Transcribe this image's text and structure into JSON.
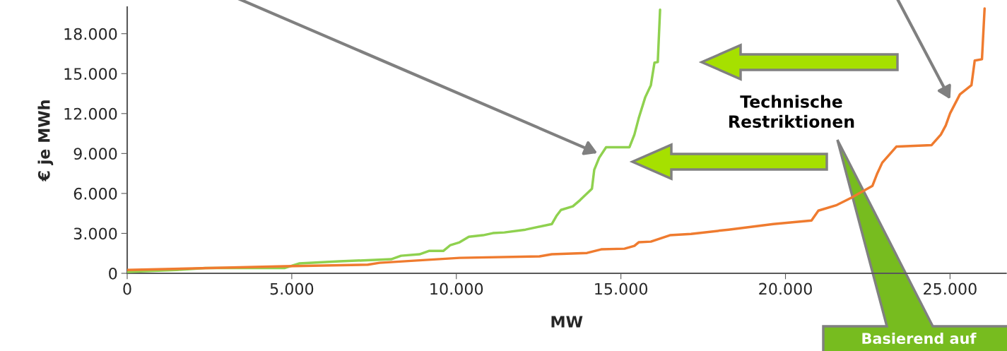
{
  "chart_data": {
    "type": "line",
    "xlabel": "MW",
    "ylabel": "€ je MWh",
    "xlim": [
      0,
      26700
    ],
    "ylim": [
      0,
      20000
    ],
    "xticks": [
      {
        "value": 0,
        "label": "0"
      },
      {
        "value": 5000,
        "label": "5.000"
      },
      {
        "value": 10000,
        "label": "10.000"
      },
      {
        "value": 15000,
        "label": "15.000"
      },
      {
        "value": 20000,
        "label": "20.000"
      },
      {
        "value": 25000,
        "label": "25.000"
      }
    ],
    "yticks": [
      {
        "value": 0,
        "label": "0"
      },
      {
        "value": 3000,
        "label": "3.000"
      },
      {
        "value": 6000,
        "label": "6.000"
      },
      {
        "value": 9000,
        "label": "9.000"
      },
      {
        "value": 12000,
        "label": "12.000"
      },
      {
        "value": 15000,
        "label": "15.000"
      },
      {
        "value": 18000,
        "label": "18.000"
      }
    ],
    "grid": false,
    "legend": false,
    "series": [
      {
        "color": "#8fd14f",
        "x": [
          0,
          1500,
          2370,
          4790,
          5220,
          6450,
          8020,
          8320,
          8880,
          9180,
          9610,
          9820,
          10100,
          10380,
          10810,
          11110,
          11460,
          12100,
          12900,
          13050,
          13180,
          13540,
          13760,
          14120,
          14190,
          14340,
          14550,
          15260,
          15410,
          15540,
          15740,
          15910,
          16020,
          16120,
          16190
        ],
        "values": [
          100,
          250,
          400,
          400,
          740,
          900,
          1060,
          1320,
          1430,
          1690,
          1690,
          2120,
          2330,
          2750,
          2860,
          3020,
          3070,
          3280,
          3700,
          4340,
          4760,
          5030,
          5500,
          6350,
          7780,
          8680,
          9470,
          9470,
          10420,
          11640,
          13230,
          14130,
          15820,
          15870,
          19800
        ]
      },
      {
        "color": "#ef7b2f",
        "x": [
          0,
          4790,
          7310,
          7670,
          10100,
          12530,
          12900,
          13970,
          14400,
          15110,
          15410,
          15540,
          15910,
          16490,
          17130,
          18270,
          19630,
          20790,
          21000,
          21560,
          21990,
          22640,
          22790,
          22940,
          23370,
          24440,
          24720,
          24870,
          25000,
          25300,
          25650,
          25750,
          25970,
          26050
        ],
        "values": [
          250,
          530,
          650,
          790,
          1160,
          1270,
          1430,
          1530,
          1800,
          1850,
          2060,
          2330,
          2380,
          2860,
          2960,
          3280,
          3700,
          3970,
          4710,
          5130,
          5660,
          6560,
          7510,
          8310,
          9520,
          9630,
          10420,
          11110,
          12010,
          13440,
          14130,
          15980,
          16080,
          19900
        ]
      }
    ],
    "annotations": [
      "Technische Restriktionen",
      "Basierend auf"
    ]
  }
}
